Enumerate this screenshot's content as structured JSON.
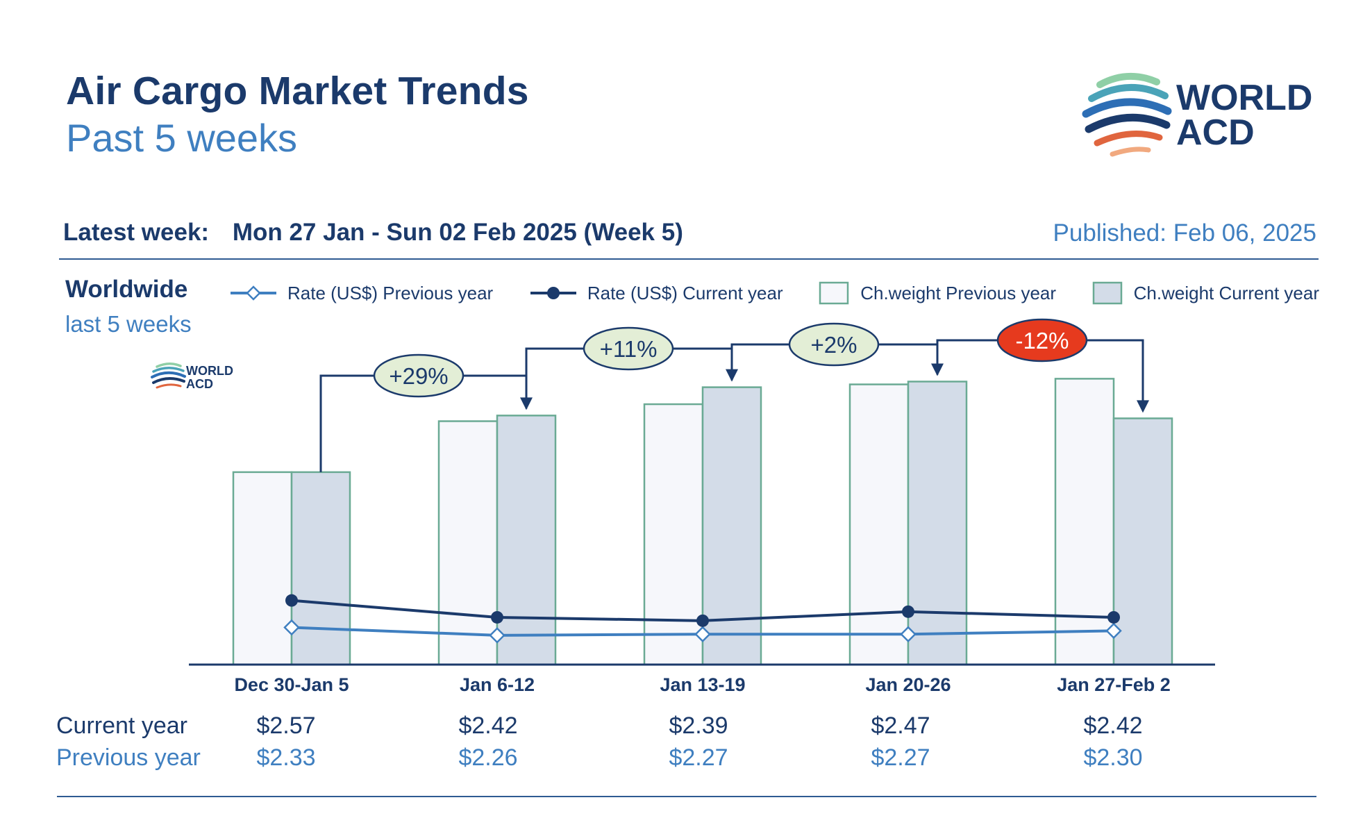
{
  "header": {
    "title": "Air Cargo Market Trends",
    "subtitle": "Past 5 weeks",
    "latest_week_label": "Latest week:",
    "latest_week_value": "Mon 27 Jan - Sun 02 Feb 2025 (Week 5)",
    "published": "Published: Feb 06, 2025"
  },
  "logo": {
    "line1": "WORLD",
    "line2": "ACD"
  },
  "region": {
    "name": "Worldwide",
    "period": "last 5 weeks"
  },
  "legend": {
    "rate_prev": "Rate (US$) Previous year",
    "rate_cur": "Rate (US$) Current year",
    "weight_prev": "Ch.weight Previous year",
    "weight_cur": "Ch.weight Current year"
  },
  "rows": {
    "current_label": "Current year",
    "previous_label": "Previous year"
  },
  "colors": {
    "navy": "#1b3a6b",
    "light_blue": "#3f7fc0",
    "bar_border": "#6aaa94",
    "bar_prev_fill": "#f6f7fb",
    "bar_cur_fill": "#d3dce8",
    "pill_green": "#e3eed6",
    "pill_red": "#e63a1e"
  },
  "chart_data": {
    "type": "bar",
    "categories": [
      "Dec 30-Jan 5",
      "Jan 6-12",
      "Jan 13-19",
      "Jan 20-26",
      "Jan 27-Feb 2"
    ],
    "series": [
      {
        "name": "Ch.weight Previous year",
        "type": "bar",
        "values": [
          0.68,
          0.86,
          0.92,
          0.99,
          1.01
        ]
      },
      {
        "name": "Ch.weight Current year",
        "type": "bar",
        "values": [
          0.68,
          0.88,
          0.98,
          1.0,
          0.87
        ]
      },
      {
        "name": "Rate (US$) Previous year",
        "type": "line",
        "values": [
          2.33,
          2.26,
          2.27,
          2.27,
          2.3
        ]
      },
      {
        "name": "Rate (US$) Current year",
        "type": "line",
        "values": [
          2.57,
          2.42,
          2.39,
          2.47,
          2.42
        ]
      }
    ],
    "annotations": [
      {
        "text": "+29%",
        "from": 0,
        "to": 1,
        "color": "green"
      },
      {
        "text": "+11%",
        "from": 1,
        "to": 2,
        "color": "green"
      },
      {
        "text": "+2%",
        "from": 2,
        "to": 3,
        "color": "green"
      },
      {
        "text": "-12%",
        "from": 3,
        "to": 4,
        "color": "red"
      }
    ],
    "current_year_rates": [
      "$2.57",
      "$2.42",
      "$2.39",
      "$2.47",
      "$2.42"
    ],
    "previous_year_rates": [
      "$2.33",
      "$2.26",
      "$2.27",
      "$2.27",
      "$2.30"
    ],
    "bar_axis_ylim": [
      0,
      1.06
    ],
    "rate_axis_ylim": [
      2.0,
      4.0
    ],
    "xlabel": "",
    "ylabel": "",
    "legend_position": "top",
    "grid": false
  }
}
